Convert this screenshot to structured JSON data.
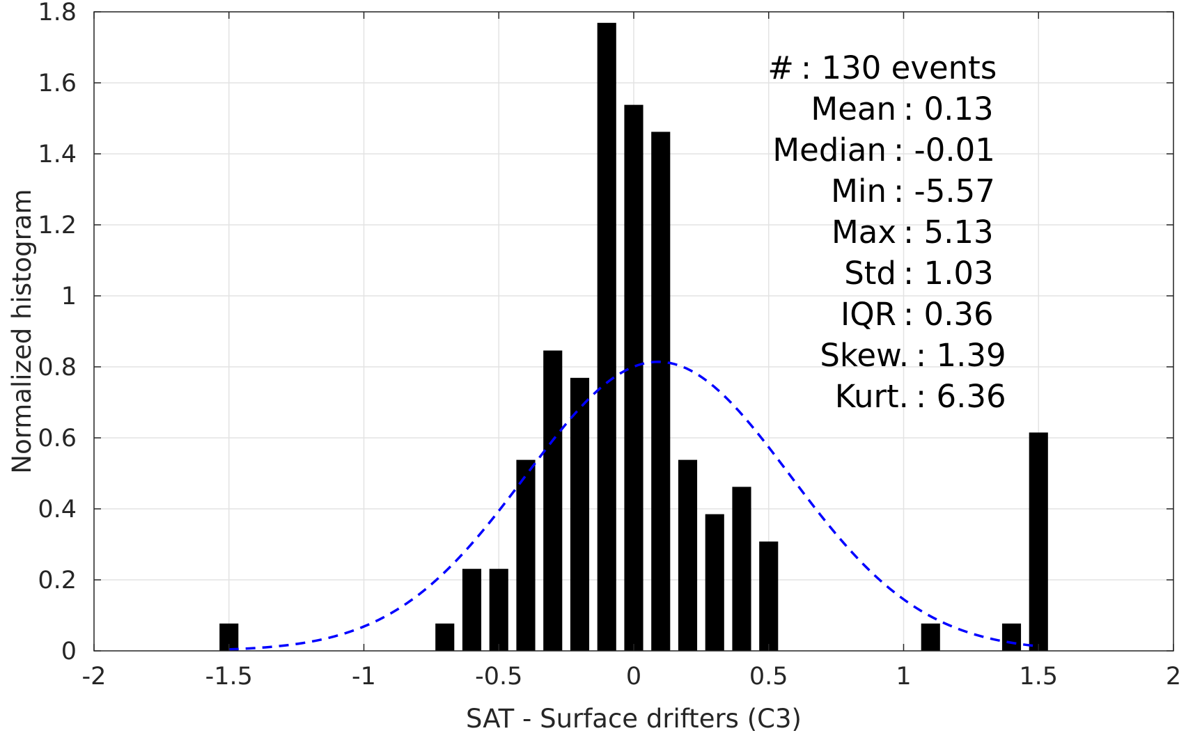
{
  "chart_data": {
    "type": "bar",
    "xlabel": "SAT - Surface drifters (C3)",
    "ylabel": "Normalized histogram",
    "xlim": [
      -2,
      2
    ],
    "ylim": [
      0,
      1.8
    ],
    "xticks": [
      -2,
      -1.5,
      -1,
      -0.5,
      0,
      0.5,
      1,
      1.5,
      2
    ],
    "xtick_labels": [
      "-2",
      "-1.5",
      "-1",
      "-0.5",
      "0",
      "0.5",
      "1",
      "1.5",
      "2"
    ],
    "yticks": [
      0,
      0.2,
      0.4,
      0.6,
      0.8,
      1,
      1.2,
      1.4,
      1.6,
      1.8
    ],
    "ytick_labels": [
      "0",
      "0.2",
      "0.4",
      "0.6",
      "0.8",
      "1",
      "1.2",
      "1.4",
      "1.6",
      "1.8"
    ],
    "grid": true,
    "bar_width": 0.07,
    "bars": [
      {
        "x": -1.5,
        "y": 0.077
      },
      {
        "x": -0.7,
        "y": 0.077
      },
      {
        "x": -0.6,
        "y": 0.231
      },
      {
        "x": -0.5,
        "y": 0.231
      },
      {
        "x": -0.4,
        "y": 0.538
      },
      {
        "x": -0.3,
        "y": 0.846
      },
      {
        "x": -0.2,
        "y": 0.769
      },
      {
        "x": -0.1,
        "y": 1.769
      },
      {
        "x": 0.0,
        "y": 1.538
      },
      {
        "x": 0.1,
        "y": 1.462
      },
      {
        "x": 0.2,
        "y": 0.538
      },
      {
        "x": 0.3,
        "y": 0.385
      },
      {
        "x": 0.4,
        "y": 0.462
      },
      {
        "x": 0.5,
        "y": 0.308
      },
      {
        "x": 1.1,
        "y": 0.077
      },
      {
        "x": 1.4,
        "y": 0.077
      },
      {
        "x": 1.5,
        "y": 0.615
      }
    ],
    "fit_curve": {
      "style": "dashed",
      "color": "#0000ff",
      "mean": 0.09,
      "sigma": 0.49,
      "x_range": [
        -1.5,
        1.5
      ]
    },
    "bar_color": "#000000",
    "stats": [
      {
        "label": "#  ",
        "value": ": 130 events"
      },
      {
        "label": "Mean",
        "value": ": 0.13"
      },
      {
        "label": "Median",
        "value": ": -0.01"
      },
      {
        "label": "Min",
        "value": ": -5.57"
      },
      {
        "label": "Max",
        "value": ": 5.13"
      },
      {
        "label": "Std",
        "value": ": 1.03"
      },
      {
        "label": "IQR",
        "value": ": 0.36"
      },
      {
        "label": "Skew.",
        "value": ": 1.39"
      },
      {
        "label": "Kurt.",
        "value": ": 6.36"
      }
    ]
  }
}
